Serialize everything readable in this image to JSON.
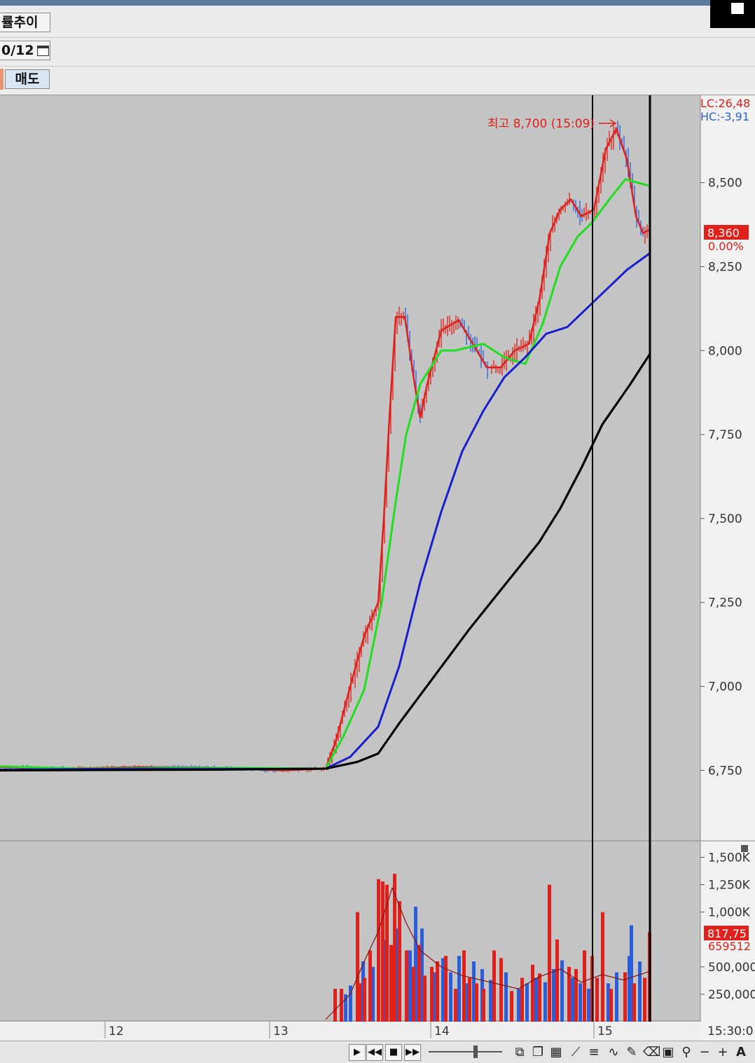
{
  "toolbar": {
    "title_label": "률추이",
    "date_value": "0/12",
    "sell_label": "매도"
  },
  "chart": {
    "high_annotation": "최고 8,700 (15:09)",
    "lc_label": "LC:26,48",
    "hc_label": "HC:-3,91",
    "current_price_badge": "8,360",
    "current_change": "0.00%",
    "volume_badge": "817,75",
    "volume_ma_label": "659512",
    "end_time_label": "15:30:0"
  },
  "colors": {
    "background": "#c4c4c4",
    "up_candle": "#e0201a",
    "down_candle": "#2b5fd9",
    "ma_green": "#22dd22",
    "ma_blue": "#1a1fcc",
    "ma_black": "#000000",
    "annotation_red": "#e0201a"
  },
  "chart_data": [
    {
      "type": "line",
      "x_ticks": [
        "12",
        "13",
        "14",
        "15"
      ],
      "y_ticks": [
        "8,500",
        "8,250",
        "8,000",
        "7,750",
        "7,500",
        "7,250",
        "7,000",
        "6,750"
      ],
      "ylim": [
        6540,
        8760
      ],
      "grid": false,
      "series": [
        {
          "values": [
            [
              0,
              6760
            ],
            [
              100,
              6755
            ],
            [
              200,
              6760
            ],
            [
              300,
              6758
            ],
            [
              400,
              6750
            ],
            [
              465,
              6755
            ],
            [
              480,
              6840
            ],
            [
              500,
              7000
            ],
            [
              520,
              7150
            ],
            [
              540,
              7250
            ],
            [
              548,
              7500
            ],
            [
              556,
              7800
            ],
            [
              565,
              8100
            ],
            [
              578,
              8100
            ],
            [
              592,
              7900
            ],
            [
              600,
              7800
            ],
            [
              610,
              7900
            ],
            [
              630,
              8060
            ],
            [
              655,
              8090
            ],
            [
              675,
              8020
            ],
            [
              695,
              7950
            ],
            [
              715,
              7950
            ],
            [
              735,
              8000
            ],
            [
              755,
              8020
            ],
            [
              770,
              8150
            ],
            [
              785,
              8350
            ],
            [
              800,
              8420
            ],
            [
              815,
              8450
            ],
            [
              830,
              8400
            ],
            [
              848,
              8420
            ],
            [
              865,
              8600
            ],
            [
              880,
              8660
            ],
            [
              895,
              8570
            ],
            [
              908,
              8400
            ],
            [
              918,
              8350
            ],
            [
              928,
              8360
            ]
          ]
        },
        {
          "values": [
            [
              0,
              6762
            ],
            [
              120,
              6755
            ],
            [
              240,
              6758
            ],
            [
              360,
              6757
            ],
            [
              465,
              6755
            ],
            [
              490,
              6850
            ],
            [
              520,
              6990
            ],
            [
              545,
              7250
            ],
            [
              565,
              7550
            ],
            [
              580,
              7750
            ],
            [
              600,
              7900
            ],
            [
              630,
              8000
            ],
            [
              650,
              8000
            ],
            [
              690,
              8020
            ],
            [
              720,
              7980
            ],
            [
              750,
              7960
            ],
            [
              775,
              8080
            ],
            [
              800,
              8250
            ],
            [
              825,
              8340
            ],
            [
              845,
              8380
            ],
            [
              870,
              8450
            ],
            [
              893,
              8510
            ],
            [
              910,
              8500
            ],
            [
              928,
              8490
            ]
          ]
        },
        {
          "values": [
            [
              0,
              6752
            ],
            [
              200,
              6755
            ],
            [
              400,
              6754
            ],
            [
              465,
              6755
            ],
            [
              500,
              6790
            ],
            [
              540,
              6880
            ],
            [
              570,
              7060
            ],
            [
              600,
              7310
            ],
            [
              630,
              7520
            ],
            [
              660,
              7700
            ],
            [
              690,
              7820
            ],
            [
              720,
              7920
            ],
            [
              750,
              7980
            ],
            [
              780,
              8050
            ],
            [
              810,
              8070
            ],
            [
              845,
              8140
            ],
            [
              870,
              8190
            ],
            [
              895,
              8240
            ],
            [
              928,
              8290
            ]
          ]
        },
        {
          "values": [
            [
              0,
              6750
            ],
            [
              300,
              6752
            ],
            [
              465,
              6755
            ],
            [
              510,
              6775
            ],
            [
              540,
              6800
            ],
            [
              570,
              6890
            ],
            [
              620,
              7030
            ],
            [
              670,
              7170
            ],
            [
              720,
              7300
            ],
            [
              770,
              7430
            ],
            [
              800,
              7530
            ],
            [
              830,
              7650
            ],
            [
              860,
              7780
            ],
            [
              900,
              7900
            ],
            [
              928,
              7990
            ]
          ]
        }
      ]
    },
    {
      "type": "bar",
      "y_ticks": [
        "1,500K",
        "1,250K",
        "1,000K",
        "500,000",
        "250,000"
      ],
      "ylim": [
        0,
        1650
      ],
      "series": [
        {
          "values": [
            [
              478,
              300
            ],
            [
              487,
              300
            ],
            [
              510,
              1000
            ],
            [
              513,
              350
            ],
            [
              520,
              400
            ],
            [
              528,
              650
            ],
            [
              540,
              1300
            ],
            [
              546,
              1280
            ],
            [
              552,
              1250
            ],
            [
              558,
              700
            ],
            [
              563,
              1350
            ],
            [
              570,
              1100
            ],
            [
              580,
              650
            ],
            [
              590,
              500
            ],
            [
              598,
              700
            ],
            [
              606,
              420
            ],
            [
              616,
              500
            ],
            [
              624,
              550
            ],
            [
              636,
              600
            ],
            [
              650,
              300
            ],
            [
              662,
              650
            ],
            [
              670,
              400
            ],
            [
              680,
              350
            ],
            [
              690,
              300
            ],
            [
              705,
              650
            ],
            [
              715,
              580
            ],
            [
              730,
              280
            ],
            [
              745,
              400
            ],
            [
              760,
              520
            ],
            [
              770,
              440
            ],
            [
              784,
              1250
            ],
            [
              795,
              750
            ],
            [
              812,
              500
            ],
            [
              822,
              480
            ],
            [
              834,
              650
            ],
            [
              845,
              600
            ],
            [
              852,
              400
            ],
            [
              860,
              1000
            ],
            [
              872,
              300
            ],
            [
              892,
              450
            ],
            [
              905,
              350
            ],
            [
              920,
              400
            ],
            [
              927,
              817
            ]
          ]
        },
        {
          "values": [
            [
              493,
              250
            ],
            [
              500,
              330
            ],
            [
              518,
              550
            ],
            [
              532,
              500
            ],
            [
              548,
              750
            ],
            [
              568,
              850
            ],
            [
              585,
              650
            ],
            [
              593,
              1050
            ],
            [
              602,
              850
            ],
            [
              620,
              450
            ],
            [
              632,
              580
            ],
            [
              643,
              450
            ],
            [
              655,
              600
            ],
            [
              667,
              350
            ],
            [
              676,
              550
            ],
            [
              688,
              480
            ],
            [
              700,
              380
            ],
            [
              722,
              450
            ],
            [
              740,
              300
            ],
            [
              752,
              350
            ],
            [
              765,
              400
            ],
            [
              778,
              360
            ],
            [
              790,
              480
            ],
            [
              802,
              560
            ],
            [
              817,
              400
            ],
            [
              828,
              350
            ],
            [
              840,
              300
            ],
            [
              868,
              350
            ],
            [
              880,
              450
            ],
            [
              898,
              600
            ],
            [
              901,
              880
            ],
            [
              913,
              550
            ]
          ]
        },
        {
          "values": [
            [
              465,
              20
            ],
            [
              480,
              120
            ],
            [
              500,
              250
            ],
            [
              520,
              550
            ],
            [
              540,
              820
            ],
            [
              560,
              1220
            ],
            [
              580,
              900
            ],
            [
              600,
              650
            ],
            [
              630,
              500
            ],
            [
              660,
              420
            ],
            [
              700,
              360
            ],
            [
              740,
              300
            ],
            [
              770,
              410
            ],
            [
              800,
              480
            ],
            [
              830,
              360
            ],
            [
              860,
              430
            ],
            [
              890,
              380
            ],
            [
              928,
              460
            ]
          ]
        }
      ]
    }
  ]
}
